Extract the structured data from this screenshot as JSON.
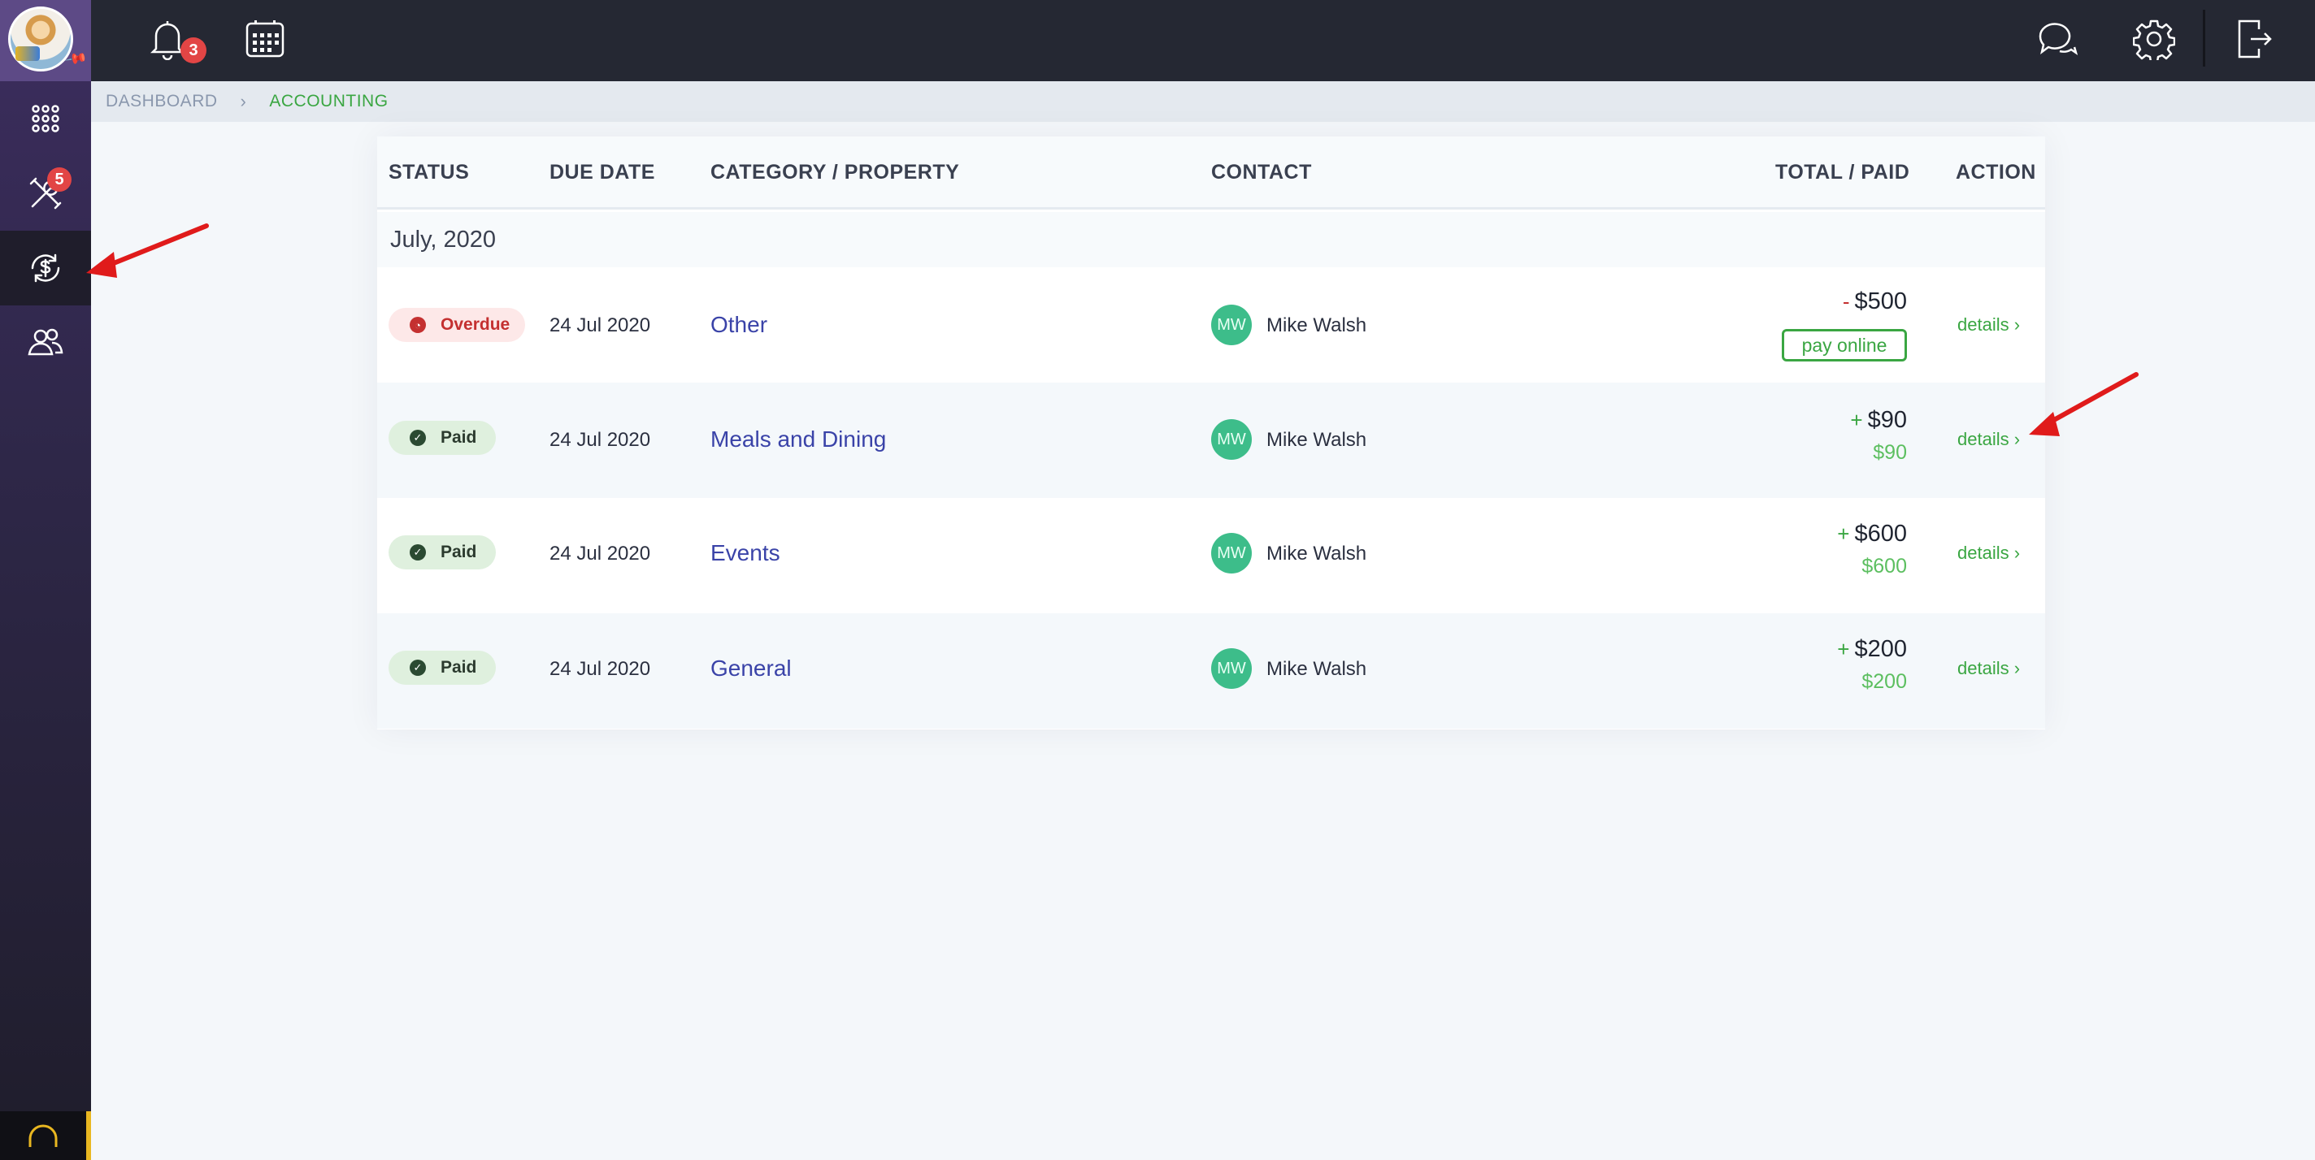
{
  "topbar": {
    "notification_count": "3",
    "icons": [
      "bell-icon",
      "calendar-icon",
      "chat-icon",
      "gear-icon",
      "logout-icon"
    ]
  },
  "sidebar": {
    "items": [
      {
        "name": "apps-grid-icon"
      },
      {
        "name": "tools-icon",
        "badge": "5"
      },
      {
        "name": "accounting-icon",
        "active": true
      },
      {
        "name": "contacts-icon"
      }
    ]
  },
  "breadcrumb": {
    "home": "DASHBOARD",
    "current": "ACCOUNTING"
  },
  "table": {
    "columns": {
      "status": "STATUS",
      "due_date": "DUE DATE",
      "category": "CATEGORY / PROPERTY",
      "contact": "CONTACT",
      "total": "TOTAL / PAID",
      "action": "ACTION"
    },
    "group": "July, 2020",
    "rows": [
      {
        "status": "Overdue",
        "due": "24 Jul 2020",
        "category": "Other",
        "initials": "MW",
        "contact": "Mike Walsh",
        "sign": "-",
        "total": "$500",
        "pay_label": "pay online",
        "action": "details"
      },
      {
        "status": "Paid",
        "due": "24 Jul 2020",
        "category": "Meals and Dining",
        "initials": "MW",
        "contact": "Mike Walsh",
        "sign": "+",
        "total": "$90",
        "paid": "$90",
        "action": "details"
      },
      {
        "status": "Paid",
        "due": "24 Jul 2020",
        "category": "Events",
        "initials": "MW",
        "contact": "Mike Walsh",
        "sign": "+",
        "total": "$600",
        "paid": "$600",
        "action": "details"
      },
      {
        "status": "Paid",
        "due": "24 Jul 2020",
        "category": "General",
        "initials": "MW",
        "contact": "Mike Walsh",
        "sign": "+",
        "total": "$200",
        "paid": "$200",
        "action": "details"
      }
    ]
  },
  "colors": {
    "accent_green": "#3aa642",
    "link_purple": "#3a43a8",
    "danger_red": "#c43030",
    "topbar": "#252833"
  }
}
